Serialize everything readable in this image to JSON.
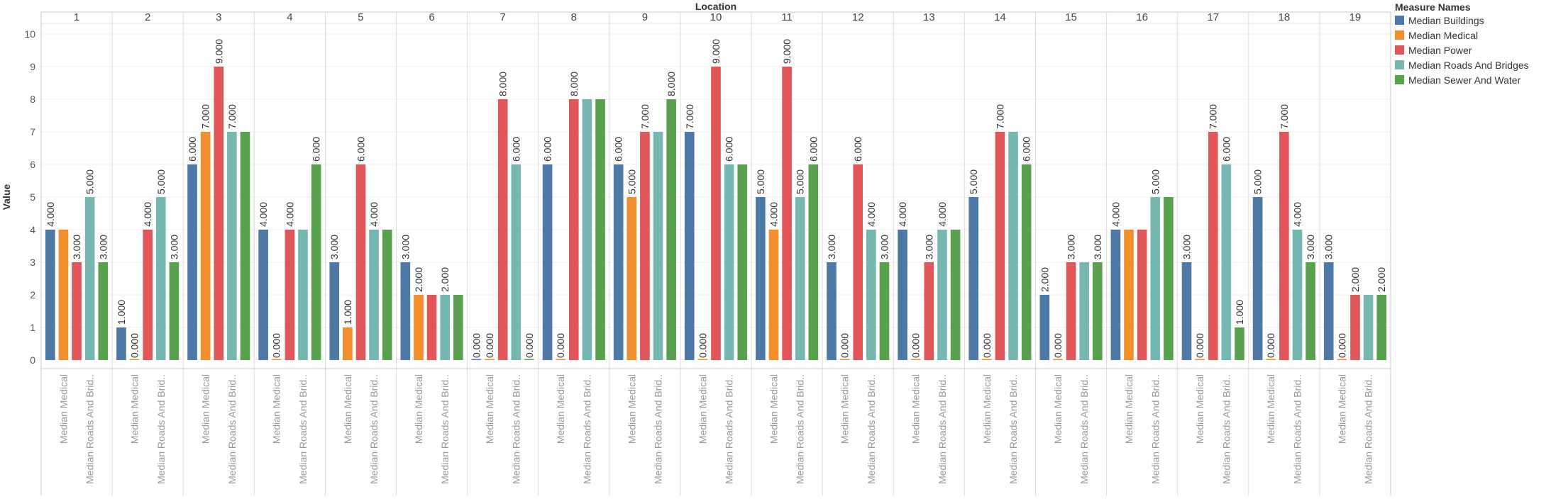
{
  "chart_data": {
    "type": "bar",
    "facet_title": "Location",
    "ylabel": "Value",
    "ylim": [
      0,
      10
    ],
    "yticks": [
      0,
      1,
      2,
      3,
      4,
      5,
      6,
      7,
      8,
      9,
      10
    ],
    "facets": [
      "1",
      "2",
      "3",
      "4",
      "5",
      "6",
      "7",
      "8",
      "9",
      "10",
      "11",
      "12",
      "13",
      "14",
      "15",
      "16",
      "17",
      "18",
      "19"
    ],
    "x_tick_labels": [
      "Median Medical",
      "Median Roads And Brid.."
    ],
    "legend": {
      "title": "Measure Names",
      "position": "top-right"
    },
    "series": [
      {
        "name": "Median Buildings",
        "color": "#4e79a7",
        "values": [
          4,
          1,
          6,
          4,
          3,
          3,
          0,
          6,
          6,
          7,
          5,
          3,
          4,
          5,
          2,
          4,
          3,
          5,
          3
        ]
      },
      {
        "name": "Median Medical",
        "color": "#f28e2b",
        "values": [
          4,
          0,
          7,
          0,
          1,
          2,
          0,
          0,
          5,
          0,
          4,
          0,
          0,
          0,
          0,
          4,
          0,
          0,
          0
        ]
      },
      {
        "name": "Median Power",
        "color": "#e15759",
        "values": [
          3,
          4,
          9,
          4,
          6,
          2,
          8,
          8,
          7,
          9,
          9,
          6,
          3,
          7,
          3,
          4,
          7,
          7,
          2
        ]
      },
      {
        "name": "Median Roads And Bridges",
        "color": "#76b7b2",
        "values": [
          5,
          5,
          7,
          4,
          4,
          2,
          6,
          8,
          7,
          6,
          5,
          4,
          4,
          7,
          3,
          5,
          6,
          4,
          2
        ]
      },
      {
        "name": "Median Sewer And Water",
        "color": "#59a14f",
        "values": [
          3,
          3,
          7,
          6,
          4,
          2,
          0,
          8,
          8,
          6,
          6,
          3,
          4,
          6,
          3,
          5,
          1,
          3,
          2
        ]
      }
    ],
    "data_labels": [
      [
        "4.000",
        null,
        "3.000",
        "5.000",
        "3.000"
      ],
      [
        "1.000",
        "0.000",
        "4.000",
        "5.000",
        "3.000"
      ],
      [
        "6.000",
        "7.000",
        "9.000",
        "7.000",
        null
      ],
      [
        "4.000",
        "0.000",
        "4.000",
        null,
        "6.000"
      ],
      [
        "3.000",
        "1.000",
        "6.000",
        "4.000",
        null
      ],
      [
        "3.000",
        "2.000",
        null,
        "2.000",
        null
      ],
      [
        "0.000",
        "0.000",
        "8.000",
        "6.000",
        "0.000"
      ],
      [
        "6.000",
        "0.000",
        "8.000",
        null,
        null
      ],
      [
        "6.000",
        "5.000",
        "7.000",
        null,
        "8.000"
      ],
      [
        "7.000",
        "0.000",
        "9.000",
        "6.000",
        null
      ],
      [
        "5.000",
        "4.000",
        "9.000",
        "5.000",
        "6.000"
      ],
      [
        "3.000",
        "0.000",
        "6.000",
        "4.000",
        "3.000"
      ],
      [
        "4.000",
        "0.000",
        "3.000",
        "4.000",
        null
      ],
      [
        "5.000",
        "0.000",
        "7.000",
        null,
        "6.000"
      ],
      [
        "2.000",
        "0.000",
        "3.000",
        null,
        "3.000"
      ],
      [
        "4.000",
        null,
        null,
        "5.000",
        null
      ],
      [
        "3.000",
        "0.000",
        "7.000",
        "6.000",
        "1.000"
      ],
      [
        "5.000",
        "0.000",
        "7.000",
        "4.000",
        "3.000"
      ],
      [
        "3.000",
        "0.000",
        "2.000",
        null,
        "2.000"
      ]
    ],
    "grid": true
  }
}
